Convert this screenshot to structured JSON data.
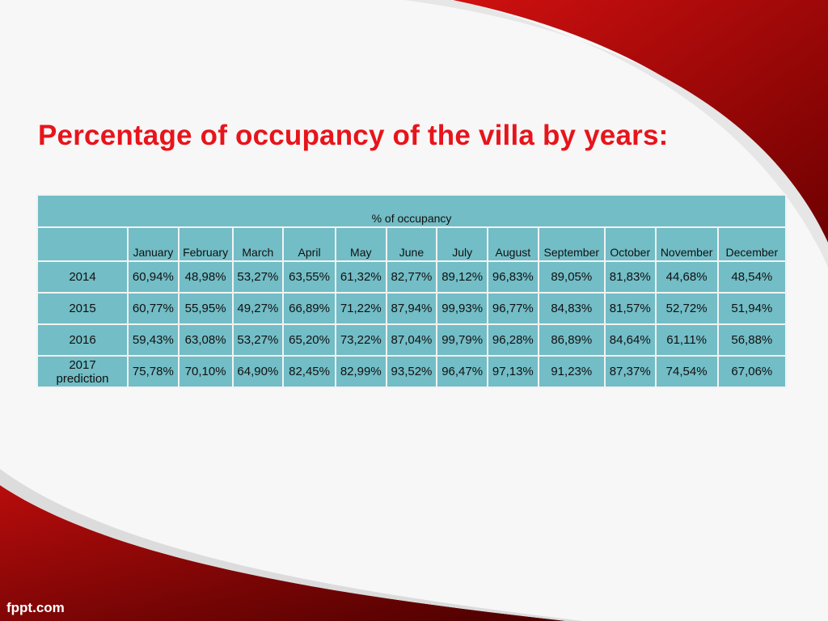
{
  "title": "Percentage of occupancy of the villa by years:",
  "table": {
    "caption": "% of occupancy",
    "months": [
      "January",
      "February",
      "March",
      "April",
      "May",
      "June",
      "July",
      "August",
      "September",
      "October",
      "November",
      "December"
    ],
    "rows": [
      {
        "label": "2014",
        "values": [
          "60,94%",
          "48,98%",
          "53,27%",
          "63,55%",
          "61,32%",
          "82,77%",
          "89,12%",
          "96,83%",
          "89,05%",
          "81,83%",
          "44,68%",
          "48,54%"
        ]
      },
      {
        "label": "2015",
        "values": [
          "60,77%",
          "55,95%",
          "49,27%",
          "66,89%",
          "71,22%",
          "87,94%",
          "99,93%",
          "96,77%",
          "84,83%",
          "81,57%",
          "52,72%",
          "51,94%"
        ]
      },
      {
        "label": "2016",
        "values": [
          "59,43%",
          "63,08%",
          "53,27%",
          "65,20%",
          "73,22%",
          "87,04%",
          "99,79%",
          "96,28%",
          "86,89%",
          "84,64%",
          "61,11%",
          "56,88%"
        ]
      },
      {
        "label": "2017 prediction",
        "values": [
          "75,78%",
          "70,10%",
          "64,90%",
          "82,45%",
          "82,99%",
          "93,52%",
          "96,47%",
          "97,13%",
          "91,23%",
          "87,37%",
          "74,54%",
          "67,06%"
        ]
      }
    ]
  },
  "footer": {
    "logo": "fppt.com"
  },
  "colors": {
    "accent": "#e8141b",
    "table": "#72bdc6",
    "swoosh": "#b00c0c"
  }
}
